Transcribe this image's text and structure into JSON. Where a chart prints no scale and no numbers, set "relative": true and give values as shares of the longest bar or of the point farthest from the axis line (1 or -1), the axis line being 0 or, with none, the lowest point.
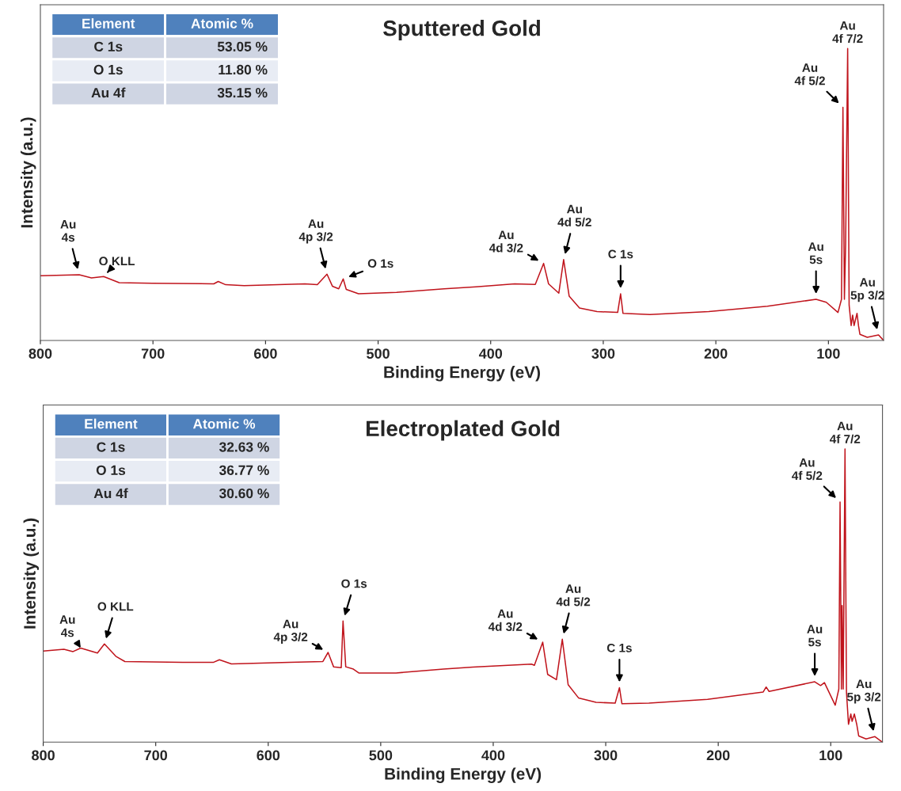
{
  "chart_data": [
    {
      "type": "line",
      "title": "Sputtered Gold",
      "xlabel": "Binding Energy (eV)",
      "ylabel": "Intensity (a.u.)",
      "relative": true,
      "tick_labels": "x",
      "grid": false,
      "legend": false,
      "xlim": [
        800,
        51
      ],
      "xticks": [
        800,
        700,
        600,
        500,
        400,
        300,
        200,
        100
      ],
      "series": [
        {
          "color": "#c0141c",
          "x": [
            800,
            765.5,
            754.6,
            743.8,
            730,
            700.6,
            646,
            642,
            635.4,
            619,
            565,
            554,
            545.4,
            540.6,
            535,
            531,
            528.3,
            517.4,
            483.6,
            441.3,
            413,
            378.7,
            360.4,
            353,
            348.6,
            339.5,
            335.2,
            330.3,
            321.1,
            305.5,
            287.2,
            284.6,
            282.5,
            258.5,
            206.3,
            154.2,
            111,
            101.9,
            91.5,
            88.4,
            87.1,
            85.8,
            84.7,
            82.9,
            81.6,
            79.8,
            78.5,
            77.2,
            74.6,
            73.3,
            72,
            65.5,
            55.5,
            51
          ],
          "values": [
            0.222,
            0.225,
            0.214,
            0.219,
            0.198,
            0.196,
            0.194,
            0.202,
            0.191,
            0.188,
            0.194,
            0.191,
            0.227,
            0.186,
            0.177,
            0.211,
            0.175,
            0.16,
            0.165,
            0.177,
            0.184,
            0.194,
            0.192,
            0.264,
            0.194,
            0.162,
            0.277,
            0.152,
            0.111,
            0.099,
            0.096,
            0.16,
            0.093,
            0.089,
            0.099,
            0.117,
            0.141,
            0.131,
            0.096,
            0.141,
            0.799,
            0.141,
            0.332,
            1.0,
            0.121,
            0.051,
            0.087,
            0.051,
            0.093,
            0.051,
            0.021,
            0.011,
            0.019,
            0.0
          ]
        }
      ],
      "annotations": [
        "Element",
        "Atomic %",
        "C 1s",
        "53.05 %",
        "O 1s",
        "11.80 %",
        "Au 4f",
        "35.15 %",
        {
          "text": "Au\n4s",
          "x": 765.5,
          "y": 0.225
        },
        {
          "text": "O KLL",
          "x": 743.8,
          "y": 0.219
        },
        {
          "text": "Au\n4p 3/2",
          "x": 545.4,
          "y": 0.227
        },
        {
          "text": "O 1s",
          "x": 531,
          "y": 0.211
        },
        {
          "text": "Au\n4d 3/2",
          "x": 353,
          "y": 0.264
        },
        {
          "text": "Au\n4d 5/2",
          "x": 335.2,
          "y": 0.277
        },
        {
          "text": "C 1s",
          "x": 284.6,
          "y": 0.16
        },
        {
          "text": "Au\n5s",
          "x": 111,
          "y": 0.141
        },
        {
          "text": "Au\n4f 5/2",
          "x": 87.1,
          "y": 0.799
        },
        {
          "text": "Au\n4f 7/2",
          "x": 82.9,
          "y": 1.0
        },
        {
          "text": "Au\n5p 3/2",
          "x": 55.5,
          "y": 0.019
        }
      ]
    },
    {
      "type": "line",
      "title": "Electroplated Gold",
      "xlabel": "Binding Energy (eV)",
      "ylabel": "Intensity (a.u.)",
      "relative": true,
      "tick_labels": "x",
      "grid": false,
      "legend": false,
      "xlim": [
        800,
        54
      ],
      "xticks": [
        800,
        700,
        600,
        500,
        400,
        300,
        200,
        100
      ],
      "series": [
        {
          "color": "#c0141c",
          "x": [
            800,
            781.6,
            773.5,
            766.7,
            751.8,
            745.6,
            735.5,
            727.4,
            676,
            648.9,
            643.4,
            632.7,
            581.2,
            551.4,
            546.8,
            541.9,
            535.1,
            533.5,
            531.1,
            524.3,
            519.5,
            486.4,
            444.2,
            418.1,
            366,
            363.4,
            356,
            351.6,
            343.8,
            338.6,
            333.4,
            324.2,
            308.6,
            291.6,
            287.8,
            285.6,
            261.6,
            209.5,
            160,
            157.4,
            154.8,
            114.2,
            109,
            105.6,
            96,
            92.8,
            91.7,
            90.5,
            89.9,
            88.9,
            87.3,
            86,
            84.2,
            82.1,
            81,
            79,
            76.9,
            75.1,
            68.6,
            60.7,
            54
          ],
          "values": [
            0.311,
            0.317,
            0.309,
            0.321,
            0.304,
            0.335,
            0.293,
            0.275,
            0.272,
            0.272,
            0.281,
            0.267,
            0.272,
            0.275,
            0.306,
            0.257,
            0.254,
            0.413,
            0.257,
            0.249,
            0.236,
            0.236,
            0.249,
            0.256,
            0.266,
            0.262,
            0.341,
            0.231,
            0.213,
            0.351,
            0.196,
            0.151,
            0.136,
            0.133,
            0.186,
            0.131,
            0.133,
            0.146,
            0.171,
            0.188,
            0.173,
            0.206,
            0.193,
            0.203,
            0.126,
            0.181,
            0.819,
            0.181,
            0.466,
            0.181,
            1.0,
            0.171,
            0.061,
            0.096,
            0.071,
            0.096,
            0.061,
            0.021,
            0.011,
            0.019,
            0.0
          ]
        }
      ],
      "annotations": [
        "Element",
        "Atomic %",
        "C 1s",
        "32.63 %",
        "O 1s",
        "36.77 %",
        "Au 4f",
        "30.60 %",
        {
          "text": "Au\n4s",
          "x": 766.7,
          "y": 0.321
        },
        {
          "text": "O KLL",
          "x": 745.6,
          "y": 0.335
        },
        {
          "text": "Au\n4p 3/2",
          "x": 546.8,
          "y": 0.306
        },
        {
          "text": "O 1s",
          "x": 533.5,
          "y": 0.413
        },
        {
          "text": "Au\n4d 3/2",
          "x": 356,
          "y": 0.341
        },
        {
          "text": "Au\n4d 5/2",
          "x": 338.6,
          "y": 0.351
        },
        {
          "text": "C 1s",
          "x": 287.8,
          "y": 0.186
        },
        {
          "text": "Au\n5s",
          "x": 114.2,
          "y": 0.206
        },
        {
          "text": "Au\n4f 5/2",
          "x": 91.7,
          "y": 0.819
        },
        {
          "text": "Au\n4f 7/2",
          "x": 87.3,
          "y": 1.0
        },
        {
          "text": "Au\n5p 3/2",
          "x": 60.7,
          "y": 0.019
        }
      ]
    }
  ]
}
